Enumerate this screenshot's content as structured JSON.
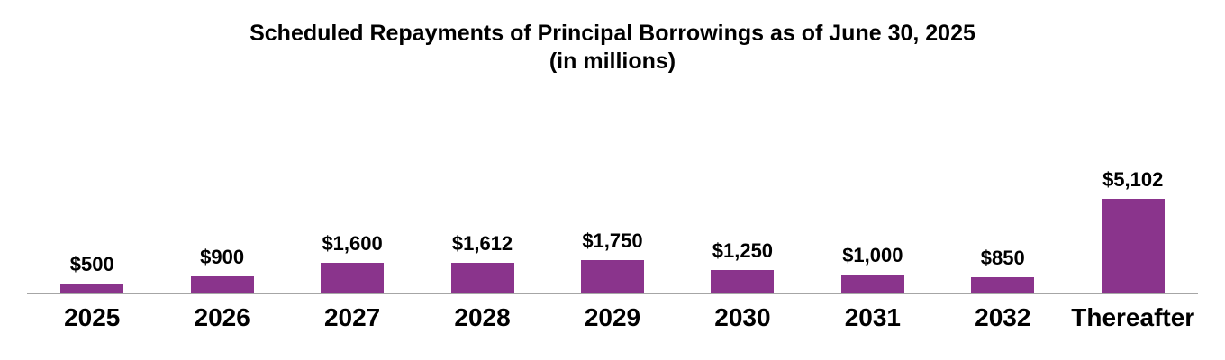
{
  "chart_data": {
    "type": "bar",
    "title": "Scheduled Repayments of Principal Borrowings as of June 30, 2025",
    "subtitle": "(in millions)",
    "categories": [
      "2025",
      "2026",
      "2027",
      "2028",
      "2029",
      "2030",
      "2031",
      "2032",
      "Thereafter"
    ],
    "values": [
      500,
      900,
      1600,
      1612,
      1750,
      1250,
      1000,
      850,
      5102
    ],
    "value_labels": [
      "$500",
      "$900",
      "$1,600",
      "$1,612",
      "$1,750",
      "$1,250",
      "$1,000",
      "$850",
      "$5,102"
    ],
    "xlabel": "",
    "ylabel": "",
    "ylim": [
      0,
      5102
    ],
    "grid": false,
    "legend_position": "none",
    "data_labels_position": "above-bars",
    "bar_color": "#8a348c",
    "axis_line_color": "#a6a6a6",
    "text_color": "#000000",
    "background_color": "#ffffff"
  }
}
